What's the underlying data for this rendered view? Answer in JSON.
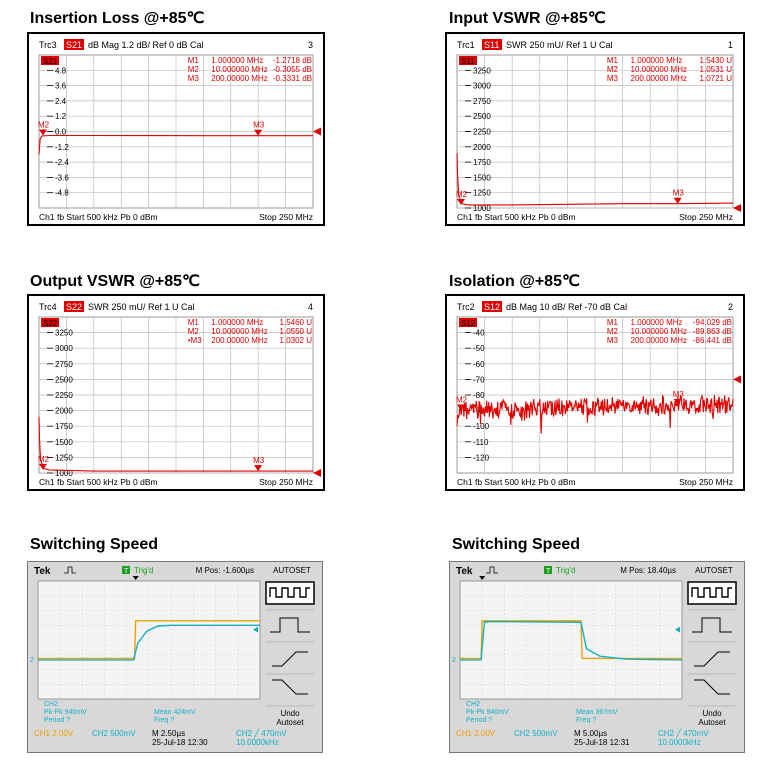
{
  "colors": {
    "trace_red": "#e00000",
    "grid": "#999999",
    "scope_yellow": "#f0a000",
    "scope_cyan": "#10b0c8",
    "scope_bg": "#d8d8d8"
  },
  "panels": [
    {
      "title": "Insertion Loss @+85℃",
      "header": {
        "trc": "Trc3",
        "param": "S21",
        "rest": "dB Mag  1.2 dB/  Ref 0 dB    Cal",
        "num": "3"
      },
      "param_tag": "S21",
      "markers_table": [
        {
          "m": "M1",
          "f": "1.000000  MHz",
          "v": "-1.2718  dB"
        },
        {
          "m": "M2",
          "f": "10.000000  MHz",
          "v": "-0.3055  dB"
        },
        {
          "m": "M3",
          "f": "200.00000  MHz",
          "v": "-0.3331  dB"
        }
      ],
      "footer": {
        "left": "Ch1   fb   Start  500 kHz    Pb    0 dBm",
        "right": "Stop  250 MHz"
      },
      "chart_data": {
        "type": "line",
        "title": "Insertion Loss @+85℃",
        "xlabel": "",
        "ylabel": "",
        "xlim": [
          0.5,
          250
        ],
        "ylim": [
          -6,
          6
        ],
        "yticks": [
          4.8,
          3.6,
          2.4,
          1.2,
          0,
          -1.2,
          -2.4,
          -3.6,
          -4.8
        ],
        "ytick_labels": [
          "4.8",
          "3.6",
          "2.4",
          "1.2",
          "0.0",
          "-1.2",
          "-2.4",
          "-3.6",
          "-4.8"
        ],
        "series": [
          {
            "x": [
              0.5,
              1,
              1.5,
              3,
              10,
              50,
              100,
              150,
              200,
              250
            ],
            "values": [
              -1.8,
              -1.27,
              -0.6,
              -0.35,
              -0.31,
              -0.31,
              -0.32,
              -0.33,
              -0.33,
              -0.33
            ]
          }
        ],
        "markers": [
          {
            "label": "M2",
            "x": 10,
            "y": -0.31
          },
          {
            "label": "M3",
            "x": 200,
            "y": -0.33
          }
        ],
        "ref_level": 0
      }
    },
    {
      "title": "Input VSWR @+85℃",
      "header": {
        "trc": "Trc1",
        "param": "S11",
        "rest": "SWR   250 mU/  Ref 1 U      Cal",
        "num": "1"
      },
      "param_tag": "S11",
      "markers_table": [
        {
          "m": "M1",
          "f": "1.000000  MHz",
          "v": "1.5430  U"
        },
        {
          "m": "M2",
          "f": "10.000000  MHz",
          "v": "1.0531  U"
        },
        {
          "m": "M3",
          "f": "200.00000  MHz",
          "v": "1.0721  U"
        }
      ],
      "footer": {
        "left": "Ch1   fb   Start  500 kHz    Pb    0 dBm",
        "right": "Stop  250 MHz"
      },
      "chart_data": {
        "type": "line",
        "title": "Input VSWR @+85℃",
        "xlabel": "",
        "ylabel": "",
        "xlim": [
          0.5,
          250
        ],
        "ylim": [
          1,
          3.5
        ],
        "yticks": [
          3.25,
          3,
          2.75,
          2.5,
          2.25,
          2,
          1.75,
          1.5,
          1.25,
          1
        ],
        "ytick_labels": [
          "3250",
          "3000",
          "2750",
          "2500",
          "2250",
          "2000",
          "1750",
          "1500",
          "1250",
          "1000"
        ],
        "series": [
          {
            "x": [
              0.5,
              1,
              2,
              5,
              10,
              50,
              100,
              150,
              200,
              250
            ],
            "values": [
              1.9,
              1.54,
              1.2,
              1.07,
              1.05,
              1.05,
              1.06,
              1.07,
              1.07,
              1.08
            ]
          }
        ],
        "markers": [
          {
            "label": "M2",
            "x": 10,
            "y": 1.05
          },
          {
            "label": "M3",
            "x": 200,
            "y": 1.07
          }
        ],
        "ref_level": 1
      }
    },
    {
      "title": "Output VSWR @+85℃",
      "header": {
        "trc": "Trc4",
        "param": "S22",
        "rest": "SWR   250 mU/  Ref 1 U      Cal",
        "num": "4"
      },
      "param_tag": "S22",
      "markers_table": [
        {
          "m": "M1",
          "f": "1.000000  MHz",
          "v": "1.5460  U"
        },
        {
          "m": "M2",
          "f": "10.000000  MHz",
          "v": "1.0550  U"
        },
        {
          "m": "•M3",
          "f": "200.00000  MHz",
          "v": "1.0302  U"
        }
      ],
      "footer": {
        "left": "Ch1   fb   Start  500 kHz    Pb    0 dBm",
        "right": "Stop  250 MHz"
      },
      "chart_data": {
        "type": "line",
        "title": "Output VSWR @+85℃",
        "xlabel": "",
        "ylabel": "",
        "xlim": [
          0.5,
          250
        ],
        "ylim": [
          1,
          3.5
        ],
        "yticks": [
          3.25,
          3,
          2.75,
          2.5,
          2.25,
          2,
          1.75,
          1.5,
          1.25,
          1
        ],
        "ytick_labels": [
          "3250",
          "3000",
          "2750",
          "2500",
          "2250",
          "2000",
          "1750",
          "1500",
          "1250",
          "1000"
        ],
        "series": [
          {
            "x": [
              0.5,
              1,
              2,
              5,
              10,
              50,
              100,
              150,
              200,
              250
            ],
            "values": [
              1.9,
              1.55,
              1.2,
              1.07,
              1.05,
              1.03,
              1.03,
              1.03,
              1.03,
              1.03
            ]
          }
        ],
        "markers": [
          {
            "label": "M2",
            "x": 10,
            "y": 1.05
          },
          {
            "label": "M3",
            "x": 200,
            "y": 1.03
          }
        ],
        "ref_level": 1
      }
    },
    {
      "title": "Isolation @+85℃",
      "header": {
        "trc": "Trc2",
        "param": "S12",
        "rest": "dB Mag   10 dB/  Ref -70 dB     Cal",
        "num": "2"
      },
      "param_tag": "S12",
      "markers_table": [
        {
          "m": "M1",
          "f": "1.000000  MHz",
          "v": "-94.029  dB"
        },
        {
          "m": "M2",
          "f": "10.000000  MHz",
          "v": "-89.863  dB"
        },
        {
          "m": "M3",
          "f": "200.00000  MHz",
          "v": "-86.441  dB"
        }
      ],
      "footer": {
        "left": "Ch1   fb   Start  500 kHz    Pb    0 dBm",
        "right": "Stop  250 MHz"
      },
      "chart_data": {
        "type": "line",
        "title": "Isolation @+85℃",
        "xlabel": "",
        "ylabel": "",
        "xlim": [
          0.5,
          250
        ],
        "ylim": [
          -130,
          -30
        ],
        "yticks": [
          -40,
          -50,
          -60,
          -70,
          -80,
          -90,
          -100,
          -110,
          -120
        ],
        "ytick_labels": [
          "-40",
          "-50",
          "-60",
          "-70",
          "-80",
          "-90",
          "-100",
          "-110",
          "-120"
        ],
        "series": [
          {
            "x": [
              0.5,
              5,
              50,
              100,
              150,
              200,
              250
            ],
            "values": [
              -94,
              -90,
              -89,
              -88,
              -87,
              -86.4,
              -86
            ],
            "noise_pp": 12
          }
        ],
        "markers": [
          {
            "label": "M2",
            "x": 10,
            "y": -89.9
          },
          {
            "label": "M3",
            "x": 200,
            "y": -86.4
          }
        ],
        "ref_level": -70
      }
    }
  ],
  "scopes": [
    {
      "title": "Switching Speed",
      "brand": "Tek",
      "trig_badge": "T",
      "trig_text": "Trig'd",
      "mpos": "M Pos: -1.600µs",
      "autoset": "AUTOSET",
      "undo": [
        "Undo",
        "Autoset"
      ],
      "meas_ch2": [
        "CH2",
        "Pk-Pk 940mV",
        "Period ?"
      ],
      "meas_mean": [
        "Mean 424mV",
        "Freq ?"
      ],
      "bottom_ch1": "CH1  2.00V",
      "bottom_ch2": "CH2  500mV",
      "bottom_m": "M 2.50µs",
      "bottom_date": "25-Jul-18 12:30",
      "bottom_trig": "CH2 ╱ 470mV",
      "bottom_freq": "10.0000kHz",
      "chart_data": {
        "type": "line",
        "xlabel": "",
        "ylabel": "",
        "xlim": [
          0,
          10
        ],
        "ylim": [
          -4,
          4
        ],
        "series": [
          {
            "x": [
              0,
              4.35,
              4.4,
              10
            ],
            "values": [
              -1.25,
              -1.25,
              1.3,
              1.3
            ]
          },
          {
            "x": [
              0,
              4.3,
              4.5,
              4.9,
              5.4,
              6,
              10
            ],
            "values": [
              -1.35,
              -1.35,
              -0.2,
              0.6,
              0.95,
              1.0,
              1.0
            ]
          }
        ],
        "trigger_x": 4.4
      }
    },
    {
      "title": "Switching Speed",
      "brand": "Tek",
      "trig_badge": "T",
      "trig_text": "Trig'd",
      "mpos": "M Pos: 18.40µs",
      "autoset": "AUTOSET",
      "undo": [
        "Undo",
        "Autoset"
      ],
      "meas_ch2": [
        "CH2",
        "Pk-Pk 940mV",
        "Period ?"
      ],
      "meas_mean": [
        "Mean 367mV",
        "Freq ?"
      ],
      "bottom_ch1": "CH1  2.00V",
      "bottom_ch2": "CH2  500mV",
      "bottom_m": "M 5.00µs",
      "bottom_date": "25-Jul-18 12:31",
      "bottom_trig": "CH2 ╱ 470mV",
      "bottom_freq": "10.0000kHz",
      "chart_data": {
        "type": "line",
        "xlabel": "",
        "ylabel": "",
        "xlim": [
          0,
          10
        ],
        "ylim": [
          -4,
          4
        ],
        "series": [
          {
            "x": [
              0,
              0.95,
              1.0,
              5.45,
              5.5,
              10
            ],
            "values": [
              -1.25,
              -1.25,
              1.3,
              1.3,
              -1.25,
              -1.25
            ]
          },
          {
            "x": [
              0,
              0.95,
              1.1,
              1.4,
              5.45,
              5.7,
              6.3,
              7.5,
              10
            ],
            "values": [
              -1.35,
              -1.35,
              1.2,
              1.25,
              1.2,
              -0.6,
              -1.1,
              -1.3,
              -1.35
            ]
          }
        ],
        "trigger_x": 1.0
      }
    }
  ]
}
